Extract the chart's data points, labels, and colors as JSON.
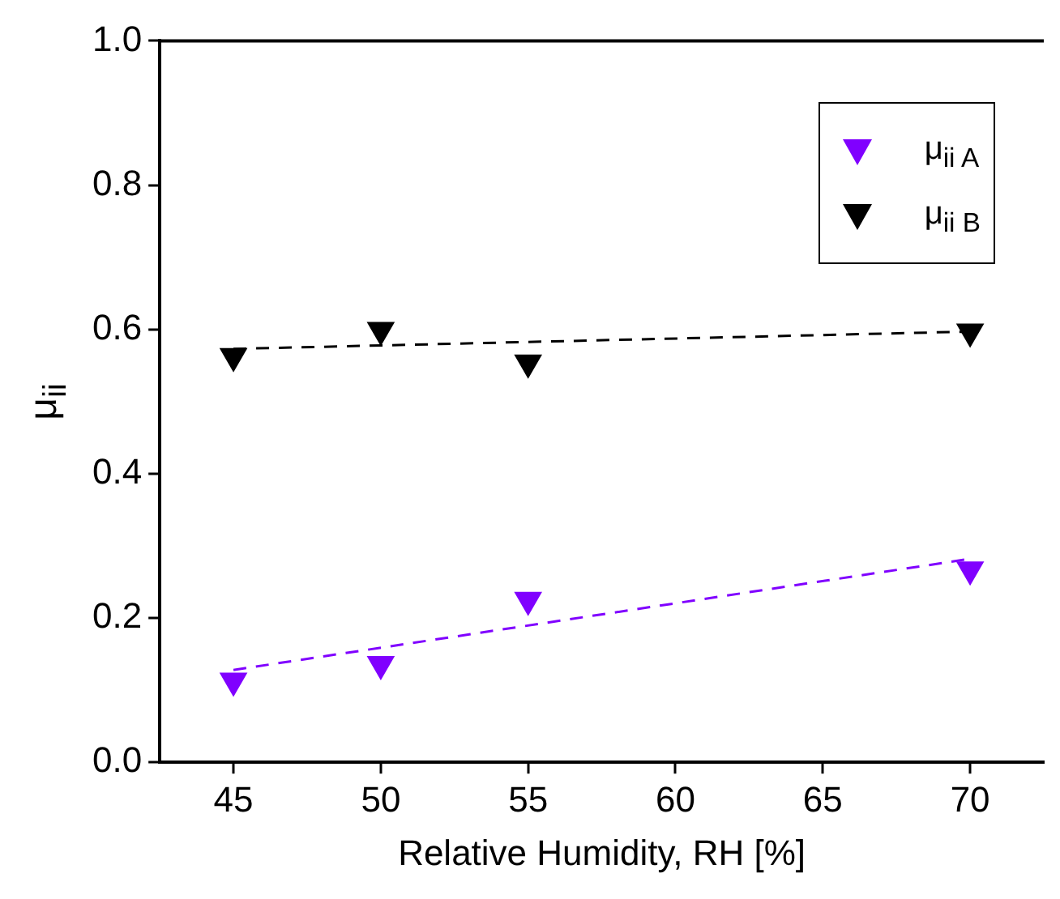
{
  "chart_data": {
    "type": "scatter",
    "xlabel": "Relative Humidity, RH [%]",
    "ylabel": "μ$_{ii}$",
    "xlim": [
      42.5,
      72.5
    ],
    "xticks": [
      45,
      50,
      55,
      60,
      65,
      70
    ],
    "ylim": [
      0,
      1
    ],
    "yticks": [
      {
        "value": 0,
        "label": "0.0"
      },
      {
        "value": 0.2,
        "label": "0.2"
      },
      {
        "value": 0.4,
        "label": "0.4"
      },
      {
        "value": 0.6,
        "label": "0.6"
      },
      {
        "value": 0.8,
        "label": "0.8"
      },
      {
        "value": 1,
        "label": "1.0"
      }
    ],
    "grid": false,
    "legend": "top right",
    "marker": "triangle",
    "series": [
      {
        "name": "μ$_{ii A}$",
        "color": "#8000ff",
        "x": [
          45,
          50,
          55,
          70
        ],
        "values": [
          0.113,
          0.136,
          0.225,
          0.267
        ]
      },
      {
        "name": "μ$_{ii B}$",
        "color": "#000000",
        "x": [
          45,
          50,
          55,
          70
        ],
        "values": [
          0.563,
          0.599,
          0.554,
          0.597
        ]
      },
      {
        "type": "line",
        "line_style": "dashed",
        "marker": "none",
        "color": "#8000ff",
        "x": [
          45,
          70
        ],
        "values": [
          0.128,
          0.282
        ]
      },
      {
        "type": "line",
        "line_style": "dashed",
        "marker": "none",
        "color": "#000000",
        "x": [
          45,
          70
        ],
        "values": [
          0.573,
          0.597
        ]
      }
    ]
  }
}
